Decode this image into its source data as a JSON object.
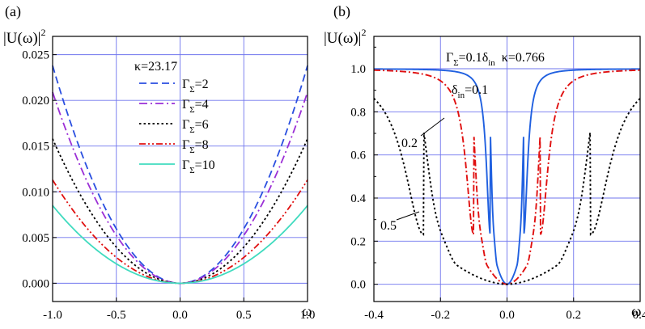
{
  "chart_data": [
    {
      "type": "line",
      "panel_label": "(a)",
      "ylabel": "|U(ω)|",
      "ylabel_sup": "2",
      "xlabel": "ω",
      "xlim": [
        -1.0,
        1.0
      ],
      "ylim": [
        -0.002,
        0.027
      ],
      "xticks": [
        "-1.0",
        "-0.5",
        "0.0",
        "0.5",
        "1.0"
      ],
      "yticks": [
        "0.000",
        "0.005",
        "0.010",
        "0.015",
        "0.020",
        "0.025"
      ],
      "grid": true,
      "legend_title": "κ=23.17",
      "legend_position": "top-center",
      "series": [
        {
          "name": "Γ_Σ=2",
          "sym": "Γ",
          "sub": "Σ",
          "tail": "=2",
          "color": "#2a4fe0",
          "dash": "9,5",
          "amp": 0.0238
        },
        {
          "name": "Γ_Σ=4",
          "sym": "Γ",
          "sub": "Σ",
          "tail": "=4",
          "color": "#9b2fd6",
          "dash": "10,4,2,4",
          "amp": 0.0209
        },
        {
          "name": "Γ_Σ=6",
          "sym": "Γ",
          "sub": "Σ",
          "tail": "=6",
          "color": "#000000",
          "dash": "2.5,3",
          "amp": 0.0158
        },
        {
          "name": "Γ_Σ=8",
          "sym": "Γ",
          "sub": "Σ",
          "tail": "=8",
          "color": "#e01010",
          "dash": "8,3,2,3,2,3",
          "amp": 0.0113
        },
        {
          "name": "Γ_Σ=10",
          "sym": "Γ",
          "sub": "Σ",
          "tail": "=10",
          "color": "#40dbbf",
          "dash": "",
          "amp": 0.0085
        }
      ]
    },
    {
      "type": "line",
      "panel_label": "(b)",
      "ylabel": "|U(ω)|",
      "ylabel_sup": "2",
      "xlabel": "ω",
      "xlim": [
        -0.4,
        0.4
      ],
      "ylim": [
        -0.08,
        1.15
      ],
      "xticks": [
        "-0.4",
        "-0.2",
        "0.0",
        "0.2",
        "0.4"
      ],
      "yticks": [
        "0.0",
        "0.2",
        "0.4",
        "0.6",
        "0.8",
        "1.0"
      ],
      "grid": true,
      "header": {
        "g": "Γ",
        "gsub": "Σ",
        "eq": "=0.1",
        "d": "δ",
        "dsub": "in",
        "kappa": "κ=0.766"
      },
      "series": [
        {
          "name": "δ_in=0.1",
          "sym": "δ",
          "sub": "in",
          "tail": "=0.1",
          "delta": 0.05,
          "color": "#2060e0",
          "dash": ""
        },
        {
          "name": "0.2",
          "label": "0.2",
          "delta": 0.1,
          "color": "#e01010",
          "dash": "8,3,2,3"
        },
        {
          "name": "0.5",
          "label": "0.5",
          "delta": 0.25,
          "color": "#000000",
          "dash": "2.5,3"
        }
      ]
    }
  ]
}
